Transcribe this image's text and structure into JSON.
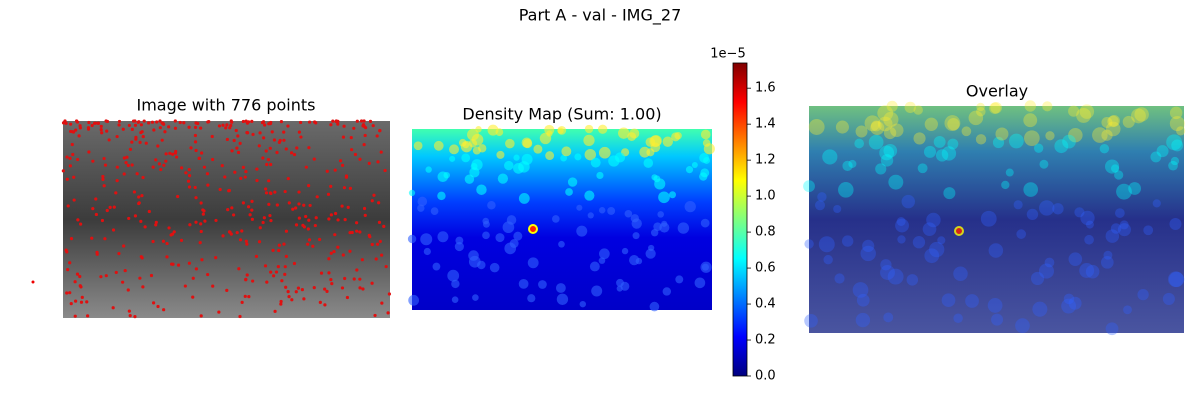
{
  "chart_data": {
    "type": "image-grid",
    "title": "Part A - val - IMG_27",
    "panels": [
      {
        "title": "Image with 776 points"
      },
      {
        "title": "Density Map (Sum: 1.00)"
      },
      {
        "title": "Overlay"
      }
    ],
    "colorbar": {
      "colormap": "jet",
      "offset_label": "1e−5",
      "ylim": [
        0,
        1.74
      ],
      "yticks": [
        {
          "value": 0,
          "label": "0.0"
        },
        {
          "value": 0.2,
          "label": "0.2"
        },
        {
          "value": 0.4,
          "label": "0.4"
        },
        {
          "value": 0.6,
          "label": "0.6"
        },
        {
          "value": 0.8,
          "label": "0.8"
        },
        {
          "value": 1.0,
          "label": "1.0"
        },
        {
          "value": 1.2,
          "label": "1.2"
        },
        {
          "value": 1.4,
          "label": "1.4"
        },
        {
          "value": 1.6,
          "label": "1.6"
        }
      ]
    }
  }
}
